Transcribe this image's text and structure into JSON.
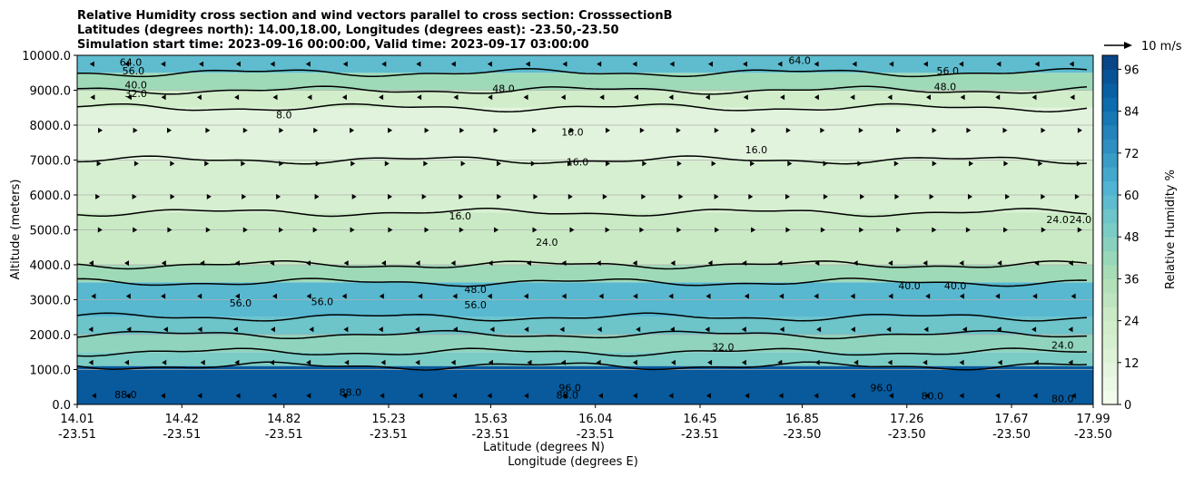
{
  "chart_data": {
    "type": "heatmap",
    "title_lines": [
      "Relative Humidity cross section and wind vectors parallel to cross section: CrosssectionB",
      "Latitudes (degrees north): 14.00,18.00, Longitudes (degrees east): -23.50,-23.50",
      "Simulation start time: 2023-09-16 00:00:00, Valid time: 2023-09-17 03:00:00"
    ],
    "ylabel": "Altitude (meters)",
    "xlabel_line1": "Latitude (degrees N)",
    "xlabel_line2": "Longitude (degrees E)",
    "colorbar_label": "Relative Humidity %",
    "quiver_key": "10 m/s",
    "ylim": [
      0,
      10000
    ],
    "xlim": [
      14.01,
      17.99
    ],
    "y_ticks": [
      {
        "value": 0,
        "label": "0.0"
      },
      {
        "value": 1000,
        "label": "1000.0"
      },
      {
        "value": 2000,
        "label": "2000.0"
      },
      {
        "value": 3000,
        "label": "3000.0"
      },
      {
        "value": 4000,
        "label": "4000.0"
      },
      {
        "value": 5000,
        "label": "5000.0"
      },
      {
        "value": 6000,
        "label": "6000.0"
      },
      {
        "value": 7000,
        "label": "7000.0"
      },
      {
        "value": 8000,
        "label": "8000.0"
      },
      {
        "value": 9000,
        "label": "9000.0"
      },
      {
        "value": 10000,
        "label": "10000.0"
      }
    ],
    "x_ticks": [
      {
        "lat": 14.01,
        "lat_label": "14.01",
        "lon_label": "-23.51"
      },
      {
        "lat": 14.42,
        "lat_label": "14.42",
        "lon_label": "-23.51"
      },
      {
        "lat": 14.82,
        "lat_label": "14.82",
        "lon_label": "-23.51"
      },
      {
        "lat": 15.23,
        "lat_label": "15.23",
        "lon_label": "-23.51"
      },
      {
        "lat": 15.63,
        "lat_label": "15.63",
        "lon_label": "-23.51"
      },
      {
        "lat": 16.04,
        "lat_label": "16.04",
        "lon_label": "-23.51"
      },
      {
        "lat": 16.45,
        "lat_label": "16.45",
        "lon_label": "-23.51"
      },
      {
        "lat": 16.85,
        "lat_label": "16.85",
        "lon_label": "-23.50"
      },
      {
        "lat": 17.26,
        "lat_label": "17.26",
        "lon_label": "-23.50"
      },
      {
        "lat": 17.67,
        "lat_label": "17.67",
        "lon_label": "-23.50"
      },
      {
        "lat": 17.99,
        "lat_label": "17.99",
        "lon_label": "-23.50"
      }
    ],
    "colorbar_ticks": [
      {
        "value": 0,
        "label": "0"
      },
      {
        "value": 12,
        "label": "12"
      },
      {
        "value": 24,
        "label": "24"
      },
      {
        "value": 36,
        "label": "36"
      },
      {
        "value": 48,
        "label": "48"
      },
      {
        "value": 60,
        "label": "60"
      },
      {
        "value": 72,
        "label": "72"
      },
      {
        "value": 84,
        "label": "84"
      },
      {
        "value": 96,
        "label": "96"
      }
    ],
    "colorbar_range": [
      0,
      100
    ],
    "colormap": [
      "#f7fcf0",
      "#e0f3db",
      "#ccebc5",
      "#a8ddb5",
      "#7bccc4",
      "#4eb3d3",
      "#2b8cbe",
      "#0868ac",
      "#084081"
    ],
    "rh_layers": [
      {
        "base": 0,
        "top": 1100,
        "rh": 92
      },
      {
        "base": 1100,
        "top": 1500,
        "rh": 50
      },
      {
        "base": 1500,
        "top": 2000,
        "rh": 44
      },
      {
        "base": 2000,
        "top": 2500,
        "rh": 54
      },
      {
        "base": 2500,
        "top": 3500,
        "rh": 60
      },
      {
        "base": 3500,
        "top": 4000,
        "rh": 40
      },
      {
        "base": 4000,
        "top": 5500,
        "rh": 26
      },
      {
        "base": 5500,
        "top": 7000,
        "rh": 19
      },
      {
        "base": 7000,
        "top": 8500,
        "rh": 12
      },
      {
        "base": 8500,
        "top": 9000,
        "rh": 22
      },
      {
        "base": 9000,
        "top": 9500,
        "rh": 40
      },
      {
        "base": 9500,
        "top": 10000,
        "rh": 58
      }
    ],
    "contour_levels": [
      8,
      16,
      24,
      32,
      40,
      48,
      56,
      64,
      72,
      80,
      88,
      96
    ],
    "contour_labels": [
      {
        "text": "64.0",
        "lat": 14.22,
        "alt": 9700
      },
      {
        "text": "56.0",
        "lat": 14.23,
        "alt": 9450
      },
      {
        "text": "40.0",
        "lat": 14.24,
        "alt": 9050
      },
      {
        "text": "32.0",
        "lat": 14.24,
        "alt": 8800
      },
      {
        "text": "48.0",
        "lat": 15.68,
        "alt": 8950
      },
      {
        "text": "64.0",
        "lat": 16.84,
        "alt": 9750
      },
      {
        "text": "56.0",
        "lat": 17.42,
        "alt": 9450
      },
      {
        "text": "48.0",
        "lat": 17.41,
        "alt": 9000
      },
      {
        "text": "8.0",
        "lat": 14.82,
        "alt": 8200
      },
      {
        "text": "16.0",
        "lat": 15.95,
        "alt": 7700
      },
      {
        "text": "16.0",
        "lat": 15.97,
        "alt": 6850
      },
      {
        "text": "16.0",
        "lat": 16.67,
        "alt": 7200
      },
      {
        "text": "16.0",
        "lat": 15.51,
        "alt": 5300
      },
      {
        "text": "24.0",
        "lat": 15.85,
        "alt": 4550
      },
      {
        "text": "24.0",
        "lat": 17.85,
        "alt": 5200
      },
      {
        "text": "24.0",
        "lat": 17.94,
        "alt": 5200
      },
      {
        "text": "40.0",
        "lat": 17.27,
        "alt": 3300
      },
      {
        "text": "40.0",
        "lat": 17.45,
        "alt": 3300
      },
      {
        "text": "48.0",
        "lat": 15.57,
        "alt": 3200
      },
      {
        "text": "56.0",
        "lat": 14.65,
        "alt": 2800
      },
      {
        "text": "56.0",
        "lat": 14.97,
        "alt": 2850
      },
      {
        "text": "56.0",
        "lat": 15.57,
        "alt": 2750
      },
      {
        "text": "32.0",
        "lat": 16.54,
        "alt": 1550
      },
      {
        "text": "24.0",
        "lat": 17.87,
        "alt": 1600
      },
      {
        "text": "88.0",
        "lat": 14.2,
        "alt": 180
      },
      {
        "text": "88.0",
        "lat": 15.08,
        "alt": 250
      },
      {
        "text": "88.0",
        "lat": 15.93,
        "alt": 170
      },
      {
        "text": "96.0",
        "lat": 15.94,
        "alt": 380
      },
      {
        "text": "96.0",
        "lat": 17.16,
        "alt": 380
      },
      {
        "text": "80.0",
        "lat": 17.36,
        "alt": 140
      },
      {
        "text": "80.0",
        "lat": 17.87,
        "alt": 70
      }
    ]
  }
}
